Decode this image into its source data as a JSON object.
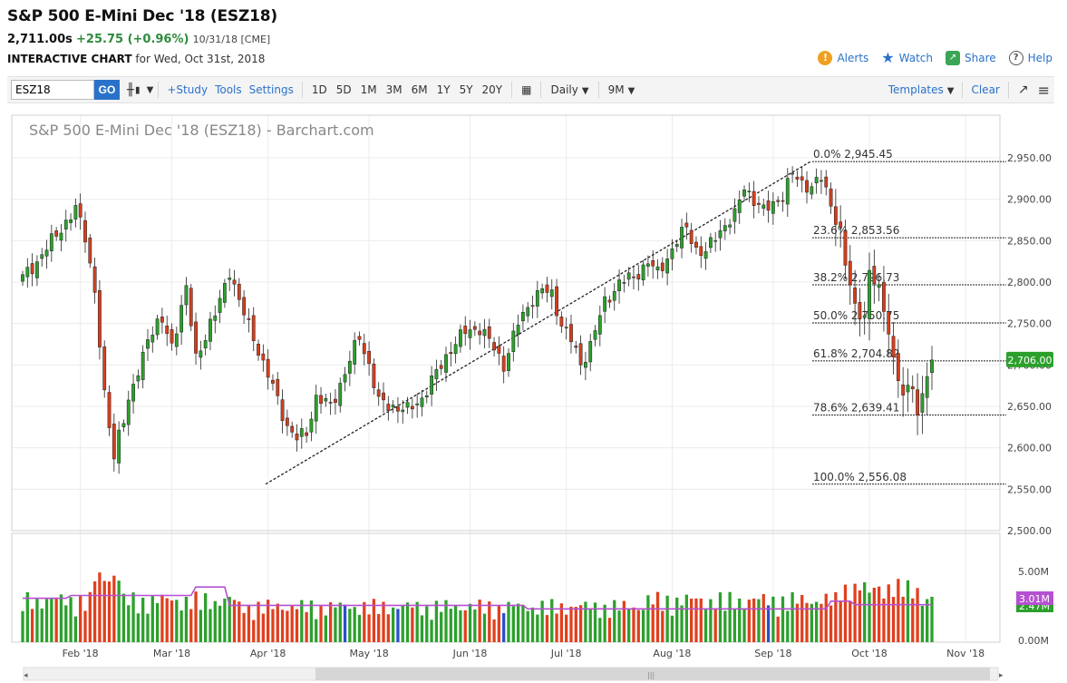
{
  "header": {
    "title": "S&P 500 E-Mini Dec '18 (ESZ18)",
    "last_price": "2,711.00s",
    "change": "+25.75 (+0.96%)",
    "stamp": "10/31/18 [CME]",
    "subtitle_bold": "INTERACTIVE CHART",
    "subtitle_rest": " for Wed, Oct 31st, 2018"
  },
  "actions": {
    "alerts": "Alerts",
    "watch": "Watch",
    "share": "Share",
    "help": "Help"
  },
  "toolbar": {
    "symbol_value": "ESZ18",
    "go_label": "GO",
    "study_label": "+Study",
    "tools_label": "Tools",
    "settings_label": "Settings",
    "ranges": [
      "1D",
      "5D",
      "1M",
      "3M",
      "6M",
      "1Y",
      "5Y",
      "20Y"
    ],
    "interval": "Daily",
    "period": "9M",
    "templates_label": "Templates",
    "clear_label": "Clear"
  },
  "chart_data": {
    "type": "candlestick",
    "title": "S&P 500 E-Mini Dec '18 (ESZ18) - Barchart.com",
    "x_labels": [
      "Feb '18",
      "Mar '18",
      "Apr '18",
      "May '18",
      "Jun '18",
      "Jul '18",
      "Aug '18",
      "Sep '18",
      "Oct '18",
      "Nov '18"
    ],
    "y_labels": [
      "2,950.00",
      "2,900.00",
      "2,850.00",
      "2,800.00",
      "2,750.00",
      "2,700.00",
      "2,650.00",
      "2,600.00",
      "2,550.00",
      "2,500.00"
    ],
    "ylim": [
      2500,
      2950
    ],
    "last_price_tag": "2,706.00",
    "fibonacci": [
      {
        "label": "0.0% 2,945.45",
        "value": 2945.45
      },
      {
        "label": "23.6% 2,853.56",
        "value": 2853.56
      },
      {
        "label": "38.2% 2,796.73",
        "value": 2796.73
      },
      {
        "label": "50.0% 2,750.75",
        "value": 2750.75
      },
      {
        "label": "61.8% 2,704.82",
        "value": 2704.82
      },
      {
        "label": "78.6% 2,639.41",
        "value": 2639.41
      },
      {
        "label": "100.0% 2,556.08",
        "value": 2556.08
      }
    ],
    "anchors": [
      [
        0,
        2805
      ],
      [
        3,
        2825
      ],
      [
        8,
        2865
      ],
      [
        11,
        2888
      ],
      [
        13,
        2855
      ],
      [
        15,
        2790
      ],
      [
        17,
        2660
      ],
      [
        19,
        2590
      ],
      [
        20,
        2620
      ],
      [
        23,
        2670
      ],
      [
        26,
        2735
      ],
      [
        29,
        2752
      ],
      [
        31,
        2725
      ],
      [
        34,
        2790
      ],
      [
        36,
        2710
      ],
      [
        40,
        2760
      ],
      [
        43,
        2815
      ],
      [
        45,
        2775
      ],
      [
        48,
        2735
      ],
      [
        50,
        2700
      ],
      [
        53,
        2660
      ],
      [
        55,
        2625
      ],
      [
        57,
        2610
      ],
      [
        59,
        2620
      ],
      [
        61,
        2660
      ],
      [
        64,
        2650
      ],
      [
        67,
        2690
      ],
      [
        70,
        2735
      ],
      [
        72,
        2700
      ],
      [
        74,
        2655
      ],
      [
        77,
        2650
      ],
      [
        80,
        2645
      ],
      [
        83,
        2660
      ],
      [
        86,
        2690
      ],
      [
        89,
        2720
      ],
      [
        92,
        2740
      ],
      [
        95,
        2745
      ],
      [
        98,
        2720
      ],
      [
        100,
        2700
      ],
      [
        103,
        2750
      ],
      [
        106,
        2780
      ],
      [
        108,
        2790
      ],
      [
        110,
        2785
      ],
      [
        112,
        2750
      ],
      [
        114,
        2730
      ],
      [
        116,
        2700
      ],
      [
        118,
        2725
      ],
      [
        121,
        2775
      ],
      [
        124,
        2800
      ],
      [
        127,
        2805
      ],
      [
        130,
        2825
      ],
      [
        132,
        2810
      ],
      [
        134,
        2830
      ],
      [
        136,
        2850
      ],
      [
        138,
        2865
      ],
      [
        140,
        2840
      ],
      [
        142,
        2835
      ],
      [
        144,
        2855
      ],
      [
        146,
        2870
      ],
      [
        148,
        2880
      ],
      [
        150,
        2915
      ],
      [
        152,
        2900
      ],
      [
        154,
        2885
      ],
      [
        156,
        2895
      ],
      [
        158,
        2905
      ],
      [
        160,
        2930
      ],
      [
        162,
        2920
      ],
      [
        164,
        2915
      ],
      [
        166,
        2925
      ],
      [
        168,
        2895
      ],
      [
        170,
        2860
      ],
      [
        171,
        2820
      ],
      [
        173,
        2770
      ],
      [
        175,
        2760
      ],
      [
        176,
        2810
      ],
      [
        178,
        2790
      ],
      [
        180,
        2745
      ],
      [
        181,
        2705
      ],
      [
        183,
        2660
      ],
      [
        185,
        2680
      ],
      [
        186,
        2640
      ],
      [
        188,
        2688
      ],
      [
        189,
        2706
      ]
    ],
    "volume": {
      "y_labels": [
        "5.00M",
        "0.00M"
      ],
      "ylim": [
        0,
        5
      ],
      "tags": [
        "3.01M",
        "2.47M"
      ]
    }
  }
}
